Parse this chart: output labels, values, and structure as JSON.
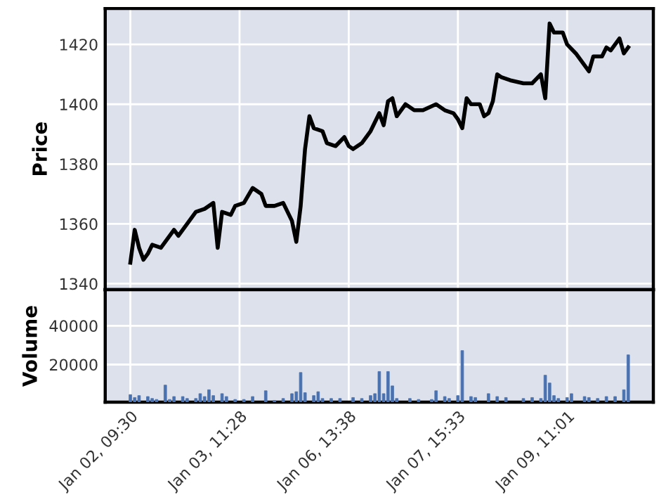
{
  "chart_data": [
    {
      "type": "line",
      "ylabel": "Price",
      "color": "#000000",
      "grid": true,
      "tick_labels": "y",
      "line_style": "solid",
      "categories": [
        null,
        null,
        null,
        null,
        null,
        null,
        null,
        null,
        null,
        null,
        null,
        null,
        null,
        null,
        null,
        null,
        null,
        null,
        null,
        null,
        null,
        null,
        null,
        null,
        null,
        null,
        null,
        null,
        null,
        null,
        null,
        null,
        null,
        null,
        null,
        null,
        null,
        null,
        null,
        null,
        null,
        null,
        null,
        null,
        null,
        null,
        null,
        null,
        null,
        null,
        null,
        null,
        null,
        null,
        null,
        null,
        null,
        null,
        null,
        null,
        null,
        null,
        null,
        null,
        null,
        null,
        null,
        null,
        null,
        null,
        null,
        null,
        null,
        null,
        null,
        null,
        null,
        null,
        null,
        null,
        null,
        null,
        null,
        null,
        null,
        null,
        null,
        null,
        null,
        null,
        null,
        null,
        null,
        null,
        null,
        null,
        null,
        null,
        null,
        null,
        null,
        null,
        null,
        null,
        null,
        null,
        null,
        null,
        null,
        null,
        null,
        null,
        null,
        null,
        null
      ],
      "values": [
        1347,
        1358,
        1352,
        1348,
        1350,
        1353,
        null,
        1352,
        1354,
        null,
        1358,
        1356,
        null,
        1360,
        null,
        1364,
        null,
        1365,
        null,
        1367,
        1352,
        1364,
        null,
        1363,
        1366,
        null,
        1367,
        null,
        1372,
        null,
        1370,
        1366,
        null,
        1366,
        null,
        1367,
        1364,
        1361,
        1354,
        1366,
        1385,
        1396,
        1392,
        null,
        1391,
        1387,
        null,
        1386,
        null,
        1389,
        1386,
        1385,
        null,
        1387,
        null,
        1391,
        null,
        1397,
        1393,
        1401,
        1402,
        1396,
        null,
        1400,
        null,
        1398,
        null,
        1398,
        null,
        null,
        1400,
        null,
        1398,
        null,
        1397,
        1395,
        1392,
        1402,
        1400,
        null,
        1400,
        1396,
        1397,
        1401,
        1410,
        1409,
        null,
        1408,
        null,
        null,
        1407,
        null,
        1407,
        null,
        1410,
        1402,
        1427,
        1424,
        null,
        1424,
        1420,
        null,
        1417,
        null,
        1413,
        1411,
        1416,
        null,
        1416,
        1419,
        1418,
        null,
        1422,
        1417,
        1419
      ],
      "ylim": [
        1338,
        1432
      ],
      "yticks": [
        1340,
        1360,
        1380,
        1400,
        1420
      ]
    },
    {
      "type": "bar",
      "ylabel": "Volume",
      "color": "#4a72b0",
      "grid": true,
      "categories": [
        "Jan 02, 09:30",
        null,
        null,
        null,
        null,
        null,
        null,
        null,
        null,
        null,
        null,
        null,
        null,
        null,
        null,
        null,
        null,
        null,
        null,
        null,
        null,
        null,
        null,
        null,
        null,
        "Jan 03, 11:28",
        null,
        null,
        null,
        null,
        null,
        null,
        null,
        null,
        null,
        null,
        null,
        null,
        null,
        null,
        null,
        null,
        null,
        null,
        null,
        null,
        null,
        null,
        null,
        null,
        "Jan 06, 13:38",
        null,
        null,
        null,
        null,
        null,
        null,
        null,
        null,
        null,
        null,
        null,
        null,
        null,
        null,
        null,
        null,
        null,
        null,
        null,
        null,
        null,
        null,
        null,
        null,
        "Jan 07, 15:33",
        null,
        null,
        null,
        null,
        null,
        null,
        null,
        null,
        null,
        null,
        null,
        null,
        null,
        null,
        null,
        null,
        null,
        null,
        null,
        null,
        null,
        null,
        null,
        null,
        "Jan 09, 11:01",
        null,
        null,
        null,
        null,
        null,
        null,
        null,
        null,
        null,
        null,
        null,
        null,
        null,
        null
      ],
      "values": [
        4500,
        3000,
        4000,
        null,
        3500,
        2500,
        2000,
        null,
        9400,
        2000,
        3500,
        null,
        3500,
        2500,
        null,
        2500,
        5000,
        3500,
        7000,
        4000,
        null,
        5000,
        3500,
        null,
        2000,
        null,
        2000,
        null,
        3500,
        null,
        null,
        6500,
        null,
        1500,
        null,
        2500,
        null,
        5000,
        6000,
        15900,
        5500,
        null,
        4000,
        6000,
        2500,
        null,
        2500,
        null,
        2500,
        null,
        null,
        3000,
        null,
        2500,
        null,
        4000,
        5000,
        16400,
        5000,
        16400,
        9000,
        2500,
        null,
        null,
        2500,
        null,
        2000,
        null,
        null,
        2000,
        6500,
        null,
        3500,
        2500,
        null,
        4000,
        27200,
        null,
        3500,
        3000,
        null,
        null,
        5000,
        null,
        3500,
        null,
        3000,
        null,
        null,
        null,
        2500,
        null,
        3000,
        null,
        2500,
        14500,
        10500,
        4000,
        2500,
        null,
        3000,
        5000,
        null,
        null,
        3500,
        3000,
        null,
        2500,
        null,
        3500,
        null,
        3500,
        null,
        7000,
        25000
      ],
      "ylim": [
        650,
        58600
      ],
      "yticks": [
        20000,
        40000
      ]
    }
  ]
}
